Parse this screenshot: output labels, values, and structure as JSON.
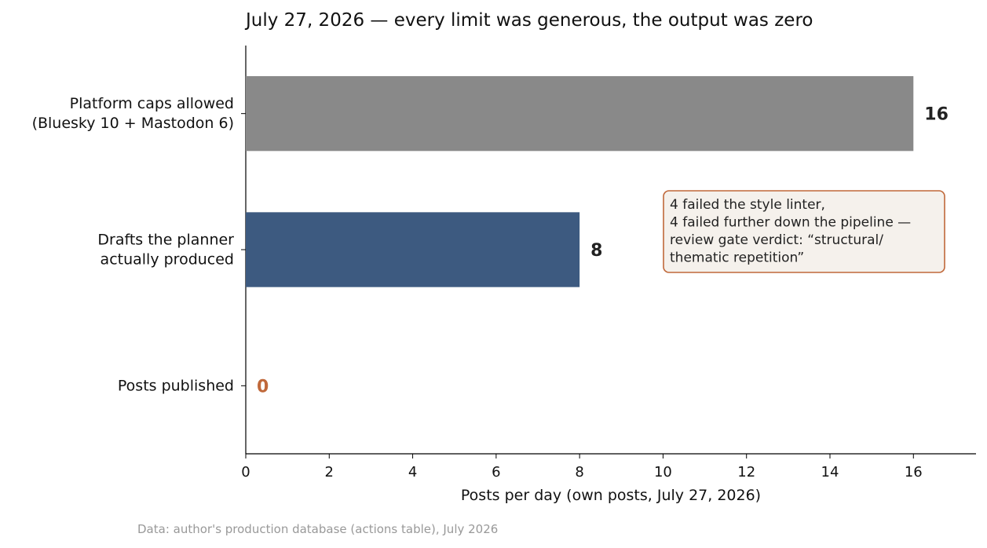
{
  "chart_data": {
    "type": "bar",
    "orientation": "horizontal",
    "title": "July 27, 2026 — every limit was generous, the output was zero",
    "xlabel": "Posts per day (own posts, July 27, 2026)",
    "ylabel": "",
    "xlim": [
      0,
      17.5
    ],
    "xticks": [
      0,
      2,
      4,
      6,
      8,
      10,
      12,
      14,
      16
    ],
    "grid": false,
    "categories": [
      [
        "Platform caps allowed",
        "(Bluesky 10 + Mastodon 6)"
      ],
      [
        "Drafts the planner",
        "actually produced"
      ],
      [
        "Posts published"
      ]
    ],
    "values": [
      16,
      8,
      0
    ],
    "bar_colors": [
      "#898989",
      "#3d5a80",
      "#c0683a"
    ],
    "value_label_colors": [
      "#222222",
      "#222222",
      "#c0683a"
    ],
    "annotation": {
      "lines": [
        "4 failed the style linter,",
        "4 failed further down the pipeline —",
        "review gate verdict: “structural/",
        "thematic repetition”"
      ],
      "border_color": "#c0683a",
      "fill_color": "#f5f1ec"
    },
    "source": "Data: author's production database (actions table), July 2026"
  }
}
